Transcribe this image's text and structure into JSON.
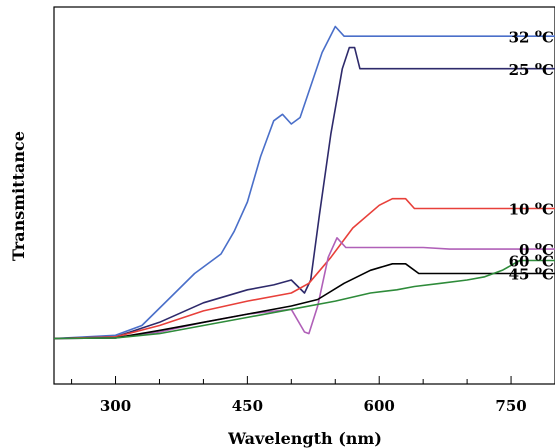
{
  "chart_data": {
    "type": "line",
    "xlabel": "Wavelength (nm)",
    "ylabel": "Transmittance",
    "xlim": [
      230,
      800
    ],
    "ylim": [
      -0.4,
      11.2
    ],
    "x_ticks": [
      300,
      450,
      600,
      750
    ],
    "y_ticks_labeled": false,
    "grid": false,
    "legend": "inline labels at right end of each curve",
    "series": [
      {
        "name": "32 °C",
        "color": "#4a6fc9",
        "points": [
          [
            230,
            1.0
          ],
          [
            300,
            1.1
          ],
          [
            330,
            1.4
          ],
          [
            360,
            2.2
          ],
          [
            390,
            3.0
          ],
          [
            420,
            3.6
          ],
          [
            435,
            4.3
          ],
          [
            450,
            5.2
          ],
          [
            465,
            6.6
          ],
          [
            480,
            7.7
          ],
          [
            490,
            7.9
          ],
          [
            500,
            7.6
          ],
          [
            510,
            7.8
          ],
          [
            520,
            8.6
          ],
          [
            535,
            9.8
          ],
          [
            550,
            10.6
          ],
          [
            560,
            10.3
          ],
          [
            800,
            10.3
          ]
        ]
      },
      {
        "name": "25 °C",
        "color": "#2e2a6b",
        "points": [
          [
            230,
            1.0
          ],
          [
            300,
            1.05
          ],
          [
            350,
            1.5
          ],
          [
            400,
            2.1
          ],
          [
            450,
            2.5
          ],
          [
            480,
            2.65
          ],
          [
            500,
            2.8
          ],
          [
            515,
            2.4
          ],
          [
            522,
            2.8
          ],
          [
            532,
            4.8
          ],
          [
            545,
            7.3
          ],
          [
            558,
            9.3
          ],
          [
            566,
            9.95
          ],
          [
            572,
            9.95
          ],
          [
            578,
            9.3
          ],
          [
            800,
            9.3
          ]
        ]
      },
      {
        "name": "10 °C",
        "color": "#e8403a",
        "points": [
          [
            230,
            1.0
          ],
          [
            300,
            1.05
          ],
          [
            350,
            1.4
          ],
          [
            400,
            1.85
          ],
          [
            450,
            2.15
          ],
          [
            500,
            2.4
          ],
          [
            520,
            2.7
          ],
          [
            545,
            3.5
          ],
          [
            570,
            4.4
          ],
          [
            600,
            5.1
          ],
          [
            615,
            5.3
          ],
          [
            630,
            5.3
          ],
          [
            640,
            5.0
          ],
          [
            800,
            5.0
          ]
        ]
      },
      {
        "name": "0 °C",
        "color": "#b060b8",
        "points": [
          [
            230,
            1.0
          ],
          [
            300,
            1.02
          ],
          [
            350,
            1.2
          ],
          [
            400,
            1.5
          ],
          [
            450,
            1.75
          ],
          [
            500,
            1.9
          ],
          [
            515,
            1.2
          ],
          [
            520,
            1.15
          ],
          [
            530,
            2.0
          ],
          [
            542,
            3.5
          ],
          [
            552,
            4.1
          ],
          [
            562,
            3.8
          ],
          [
            650,
            3.8
          ],
          [
            680,
            3.75
          ],
          [
            800,
            3.75
          ]
        ]
      },
      {
        "name": "45 °C",
        "color": "#000000",
        "points": [
          [
            230,
            1.0
          ],
          [
            300,
            1.02
          ],
          [
            350,
            1.25
          ],
          [
            400,
            1.5
          ],
          [
            450,
            1.75
          ],
          [
            500,
            2.0
          ],
          [
            530,
            2.2
          ],
          [
            560,
            2.7
          ],
          [
            590,
            3.1
          ],
          [
            615,
            3.3
          ],
          [
            630,
            3.3
          ],
          [
            645,
            3.0
          ],
          [
            800,
            3.0
          ]
        ]
      },
      {
        "name": "60 °C",
        "color": "#2e8b3a",
        "points": [
          [
            230,
            1.0
          ],
          [
            300,
            1.02
          ],
          [
            350,
            1.15
          ],
          [
            400,
            1.4
          ],
          [
            450,
            1.65
          ],
          [
            500,
            1.9
          ],
          [
            550,
            2.15
          ],
          [
            590,
            2.4
          ],
          [
            620,
            2.5
          ],
          [
            640,
            2.6
          ],
          [
            670,
            2.7
          ],
          [
            700,
            2.8
          ],
          [
            720,
            2.9
          ],
          [
            740,
            3.1
          ],
          [
            760,
            3.4
          ],
          [
            780,
            3.4
          ],
          [
            800,
            3.4
          ]
        ]
      }
    ]
  }
}
